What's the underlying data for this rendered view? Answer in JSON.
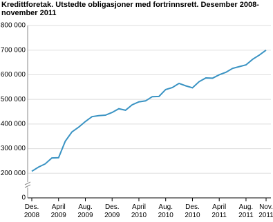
{
  "chart_data": {
    "type": "line",
    "title": "Kredittforetak. Utstedte obligasjoner med fortrinnsrett. Desember  2008-november 2011",
    "categories": [
      "Des. 2008",
      null,
      null,
      null,
      "April 2009",
      null,
      null,
      null,
      "Aug. 2009",
      null,
      null,
      null,
      "Des. 2009",
      null,
      null,
      null,
      "April 2010",
      null,
      null,
      null,
      "Aug. 2010",
      null,
      null,
      null,
      "Des. 2010",
      null,
      null,
      null,
      "April 2011",
      null,
      null,
      null,
      "Aug. 2011",
      null,
      null,
      "Nov. 2011"
    ],
    "series": [
      {
        "color": "#3a93c3",
        "values": [
          208000,
          225000,
          238000,
          262000,
          263000,
          330000,
          368000,
          387000,
          410000,
          430000,
          434000,
          436000,
          447000,
          462000,
          456000,
          478000,
          490000,
          494000,
          511000,
          512000,
          540000,
          548000,
          565000,
          555000,
          547000,
          572000,
          587000,
          586000,
          600000,
          610000,
          626000,
          633000,
          640000,
          663000,
          680000,
          700000
        ]
      }
    ],
    "ylim": [
      0,
      800000
    ],
    "yticks": [
      0,
      {
        "value": 200000,
        "label": "200 000"
      },
      {
        "value": 300000,
        "label": "300 000"
      },
      {
        "value": 400000,
        "label": "400 000"
      },
      {
        "value": 500000,
        "label": "500 000"
      },
      {
        "value": 600000,
        "label": "600 000"
      },
      {
        "value": 700000,
        "label": "700 000"
      },
      {
        "value": 800000,
        "label": "800 000"
      }
    ],
    "axis_break": true,
    "grid": true
  }
}
